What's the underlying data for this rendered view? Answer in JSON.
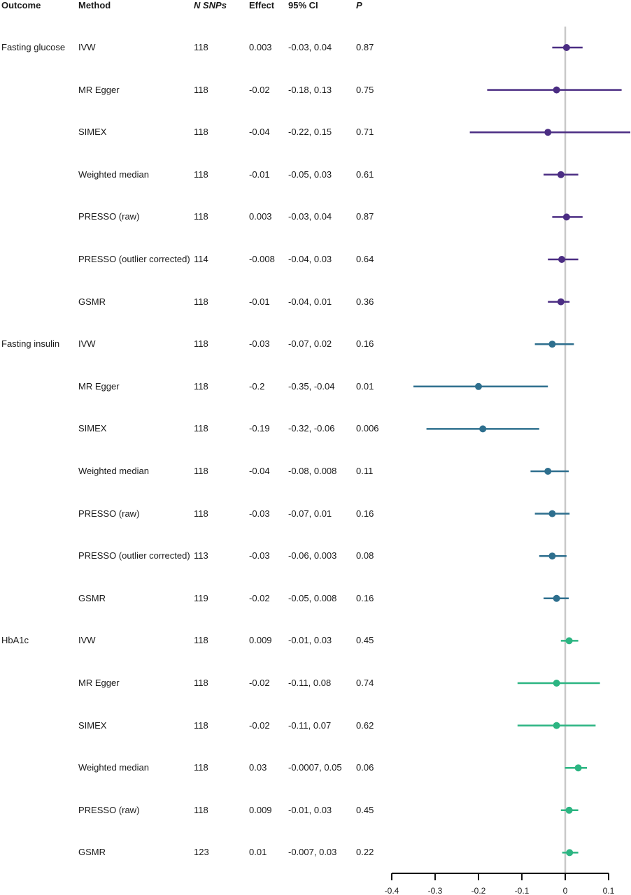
{
  "headers": {
    "outcome": "Outcome",
    "method": "Method",
    "nsnps": "N SNPs",
    "effect": "Effect",
    "ci": "95% CI",
    "p": "P"
  },
  "colors": {
    "Fasting glucose": "#4b2d83",
    "Fasting insulin": "#2e6f8e",
    "HbA1c": "#2cb582",
    "reference_line": "#c8c8c8",
    "axis": "#111111"
  },
  "rows": [
    {
      "outcome": "Fasting glucose",
      "method": "IVW",
      "nsnps": "118",
      "effect": "0.003",
      "ci": "-0.03, 0.04",
      "p": "0.87"
    },
    {
      "outcome": "",
      "method": "MR Egger",
      "nsnps": "118",
      "effect": "-0.02",
      "ci": "-0.18, 0.13",
      "p": "0.75"
    },
    {
      "outcome": "",
      "method": "SIMEX",
      "nsnps": "118",
      "effect": "-0.04",
      "ci": "-0.22, 0.15",
      "p": "0.71"
    },
    {
      "outcome": "",
      "method": "Weighted median",
      "nsnps": "118",
      "effect": "-0.01",
      "ci": "-0.05, 0.03",
      "p": "0.61"
    },
    {
      "outcome": "",
      "method": "PRESSO (raw)",
      "nsnps": "118",
      "effect": "0.003",
      "ci": "-0.03, 0.04",
      "p": "0.87"
    },
    {
      "outcome": "",
      "method": "PRESSO (outlier corrected)",
      "nsnps": "114",
      "effect": "-0.008",
      "ci": "-0.04, 0.03",
      "p": "0.64"
    },
    {
      "outcome": "",
      "method": "GSMR",
      "nsnps": "118",
      "effect": "-0.01",
      "ci": "-0.04, 0.01",
      "p": "0.36"
    },
    {
      "outcome": "Fasting insulin",
      "method": "IVW",
      "nsnps": "118",
      "effect": "-0.03",
      "ci": "-0.07, 0.02",
      "p": "0.16"
    },
    {
      "outcome": "",
      "method": "MR Egger",
      "nsnps": "118",
      "effect": "-0.2",
      "ci": "-0.35, -0.04",
      "p": "0.01"
    },
    {
      "outcome": "",
      "method": "SIMEX",
      "nsnps": "118",
      "effect": "-0.19",
      "ci": "-0.32, -0.06",
      "p": "0.006"
    },
    {
      "outcome": "",
      "method": "Weighted median",
      "nsnps": "118",
      "effect": "-0.04",
      "ci": "-0.08, 0.008",
      "p": "0.11"
    },
    {
      "outcome": "",
      "method": "PRESSO (raw)",
      "nsnps": "118",
      "effect": "-0.03",
      "ci": "-0.07, 0.01",
      "p": "0.16"
    },
    {
      "outcome": "",
      "method": "PRESSO (outlier corrected)",
      "nsnps": "113",
      "effect": "-0.03",
      "ci": "-0.06, 0.003",
      "p": "0.08"
    },
    {
      "outcome": "",
      "method": "GSMR",
      "nsnps": "119",
      "effect": "-0.02",
      "ci": "-0.05, 0.008",
      "p": "0.16"
    },
    {
      "outcome": "HbA1c",
      "method": "IVW",
      "nsnps": "118",
      "effect": "0.009",
      "ci": "-0.01, 0.03",
      "p": "0.45"
    },
    {
      "outcome": "",
      "method": "MR Egger",
      "nsnps": "118",
      "effect": "-0.02",
      "ci": "-0.11, 0.08",
      "p": "0.74"
    },
    {
      "outcome": "",
      "method": "SIMEX",
      "nsnps": "118",
      "effect": "-0.02",
      "ci": "-0.11, 0.07",
      "p": "0.62"
    },
    {
      "outcome": "",
      "method": "Weighted median",
      "nsnps": "118",
      "effect": "0.03",
      "ci": "-0.0007, 0.05",
      "p": "0.06"
    },
    {
      "outcome": "",
      "method": "PRESSO (raw)",
      "nsnps": "118",
      "effect": "0.009",
      "ci": "-0.01, 0.03",
      "p": "0.45"
    },
    {
      "outcome": "",
      "method": "GSMR",
      "nsnps": "123",
      "effect": "0.01",
      "ci": "-0.007, 0.03",
      "p": "0.22"
    }
  ],
  "chart_data": {
    "type": "forest",
    "xlim": [
      -0.4,
      0.1
    ],
    "x_ticks": [
      "-0.4",
      "-0.3",
      "-0.2",
      "-0.1",
      "0",
      "0.1"
    ],
    "reference_line": 0,
    "series": [
      {
        "name": "Fasting glucose",
        "points": [
          {
            "method": "IVW",
            "estimate": 0.003,
            "lower": -0.03,
            "upper": 0.04
          },
          {
            "method": "MR Egger",
            "estimate": -0.02,
            "lower": -0.18,
            "upper": 0.13
          },
          {
            "method": "SIMEX",
            "estimate": -0.04,
            "lower": -0.22,
            "upper": 0.15
          },
          {
            "method": "Weighted median",
            "estimate": -0.01,
            "lower": -0.05,
            "upper": 0.03
          },
          {
            "method": "PRESSO (raw)",
            "estimate": 0.003,
            "lower": -0.03,
            "upper": 0.04
          },
          {
            "method": "PRESSO (outlier corrected)",
            "estimate": -0.008,
            "lower": -0.04,
            "upper": 0.03
          },
          {
            "method": "GSMR",
            "estimate": -0.01,
            "lower": -0.04,
            "upper": 0.01
          }
        ]
      },
      {
        "name": "Fasting insulin",
        "points": [
          {
            "method": "IVW",
            "estimate": -0.03,
            "lower": -0.07,
            "upper": 0.02
          },
          {
            "method": "MR Egger",
            "estimate": -0.2,
            "lower": -0.35,
            "upper": -0.04
          },
          {
            "method": "SIMEX",
            "estimate": -0.19,
            "lower": -0.32,
            "upper": -0.06
          },
          {
            "method": "Weighted median",
            "estimate": -0.04,
            "lower": -0.08,
            "upper": 0.008
          },
          {
            "method": "PRESSO (raw)",
            "estimate": -0.03,
            "lower": -0.07,
            "upper": 0.01
          },
          {
            "method": "PRESSO (outlier corrected)",
            "estimate": -0.03,
            "lower": -0.06,
            "upper": 0.003
          },
          {
            "method": "GSMR",
            "estimate": -0.02,
            "lower": -0.05,
            "upper": 0.008
          }
        ]
      },
      {
        "name": "HbA1c",
        "points": [
          {
            "method": "IVW",
            "estimate": 0.009,
            "lower": -0.01,
            "upper": 0.03
          },
          {
            "method": "MR Egger",
            "estimate": -0.02,
            "lower": -0.11,
            "upper": 0.08
          },
          {
            "method": "SIMEX",
            "estimate": -0.02,
            "lower": -0.11,
            "upper": 0.07
          },
          {
            "method": "Weighted median",
            "estimate": 0.03,
            "lower": -0.0007,
            "upper": 0.05
          },
          {
            "method": "PRESSO (raw)",
            "estimate": 0.009,
            "lower": -0.01,
            "upper": 0.03
          },
          {
            "method": "GSMR",
            "estimate": 0.01,
            "lower": -0.007,
            "upper": 0.03
          }
        ]
      }
    ]
  }
}
